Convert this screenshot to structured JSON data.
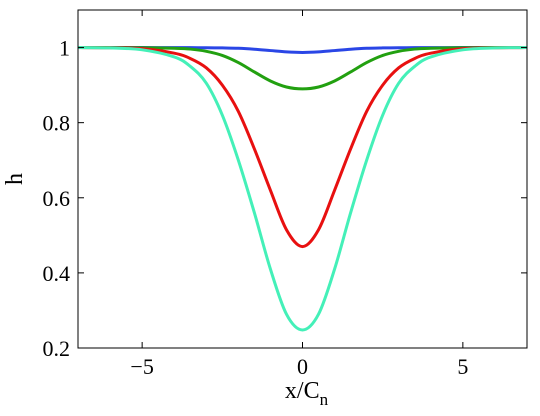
{
  "chart_data": {
    "type": "line",
    "title": "",
    "xlabel": "x/C",
    "xlabel_subscript": "n",
    "ylabel": "h",
    "xlim": [
      -7,
      7
    ],
    "ylim": [
      0.2,
      1.1
    ],
    "xticks": [
      -5,
      0,
      5
    ],
    "xtick_labels": [
      "−5",
      "0",
      "5"
    ],
    "yticks": [
      0.2,
      0.4,
      0.6,
      0.8,
      1.0
    ],
    "ytick_labels": [
      "0.2",
      "0.4",
      "0.6",
      "0.8",
      "1"
    ],
    "grid": false,
    "legend": "none",
    "x": [
      -7,
      -6,
      -5,
      -4,
      -3.5,
      -3,
      -2.5,
      -2,
      -1.5,
      -1,
      -0.5,
      0,
      0.5,
      1,
      1.5,
      2,
      2.5,
      3,
      3.5,
      4,
      5,
      6,
      7
    ],
    "series": [
      {
        "color": "#2a46e6",
        "values": [
          1.0,
          1.0,
          1.0,
          0.9998,
          0.9997,
          0.9995,
          0.999,
          0.998,
          0.9955,
          0.992,
          0.9885,
          0.987,
          0.9885,
          0.992,
          0.9955,
          0.998,
          0.999,
          0.9995,
          0.9997,
          0.9998,
          1.0,
          1.0,
          1.0
        ]
      },
      {
        "color": "#22a010",
        "values": [
          1.0,
          1.0,
          0.9995,
          0.998,
          0.996,
          0.99,
          0.979,
          0.96,
          0.935,
          0.911,
          0.895,
          0.89,
          0.895,
          0.911,
          0.935,
          0.96,
          0.979,
          0.99,
          0.996,
          0.998,
          0.9995,
          1.0,
          1.0
        ]
      },
      {
        "color": "#e81010",
        "values": [
          1.0,
          0.9995,
          0.997,
          0.985,
          0.971,
          0.946,
          0.9,
          0.83,
          0.73,
          0.62,
          0.515,
          0.47,
          0.515,
          0.62,
          0.73,
          0.83,
          0.9,
          0.946,
          0.971,
          0.985,
          0.997,
          0.9995,
          1.0
        ]
      },
      {
        "color": "#44f0b8",
        "values": [
          1.0,
          0.999,
          0.994,
          0.975,
          0.95,
          0.905,
          0.82,
          0.7,
          0.56,
          0.41,
          0.29,
          0.248,
          0.29,
          0.41,
          0.56,
          0.7,
          0.82,
          0.905,
          0.95,
          0.975,
          0.994,
          0.999,
          1.0
        ]
      }
    ]
  }
}
